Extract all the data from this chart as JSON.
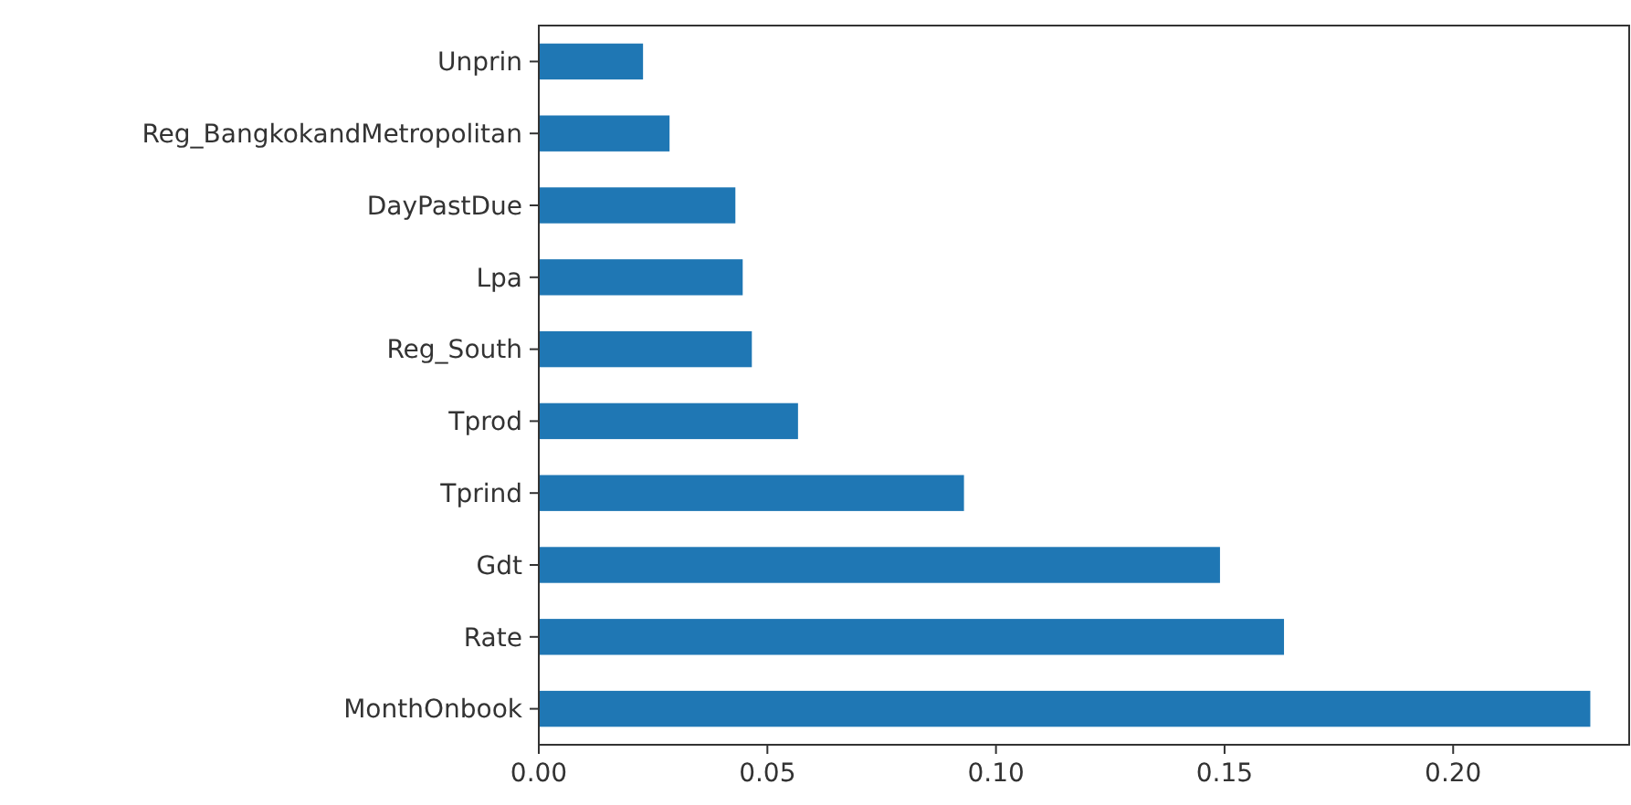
{
  "chart_data": {
    "type": "bar",
    "orientation": "horizontal",
    "categories": [
      "Unprin",
      "Reg_BangkokandMetropolitan",
      "DayPastDue",
      "Lpa",
      "Reg_South",
      "Tprod",
      "Tprind",
      "Gdt",
      "Rate",
      "MonthOnbook"
    ],
    "values": [
      0.0228,
      0.0286,
      0.043,
      0.0446,
      0.0466,
      0.0567,
      0.093,
      0.149,
      0.163,
      0.23
    ],
    "color": "#1f77b4",
    "xlim": [
      0,
      0.2385
    ],
    "xticks": [
      {
        "value": 0,
        "label": "0.00"
      },
      {
        "value": 0.05,
        "label": "0.05"
      },
      {
        "value": 0.1,
        "label": "0.10"
      },
      {
        "value": 0.15,
        "label": "0.15"
      },
      {
        "value": 0.2,
        "label": "0.20"
      }
    ],
    "grid": false
  }
}
